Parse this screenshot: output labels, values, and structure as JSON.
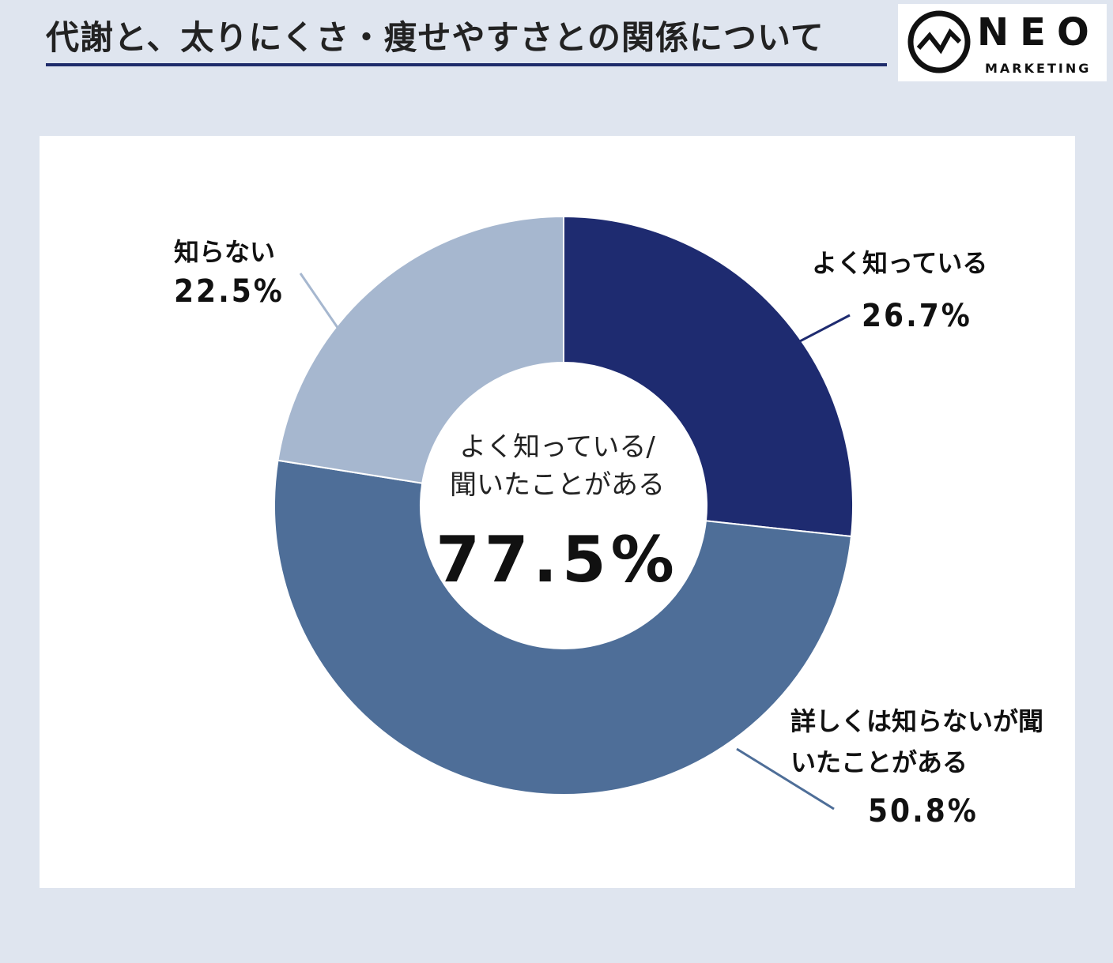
{
  "header": {
    "title": "代謝と、太りにくさ・痩せやすさとの関係について"
  },
  "logo": {
    "name": "NEO",
    "sub": "MARKETING",
    "icon": "pulse-circle-icon"
  },
  "chart_data": {
    "type": "pie",
    "variant": "donut",
    "title": "",
    "slices": [
      {
        "label": "よく知っている",
        "value": 26.7,
        "value_label": "26.7%",
        "color": "#1e2b70"
      },
      {
        "label": "詳しくは知らないが聞いたことがある",
        "value": 50.8,
        "value_label": "50.8%",
        "color": "#4e6e98"
      },
      {
        "label": "知らない",
        "value": 22.5,
        "value_label": "22.5%",
        "color": "#a6b7cf"
      }
    ],
    "center": {
      "line1": "よく知っている/",
      "line2": "聞いたことがある",
      "value": "77.5%"
    }
  }
}
